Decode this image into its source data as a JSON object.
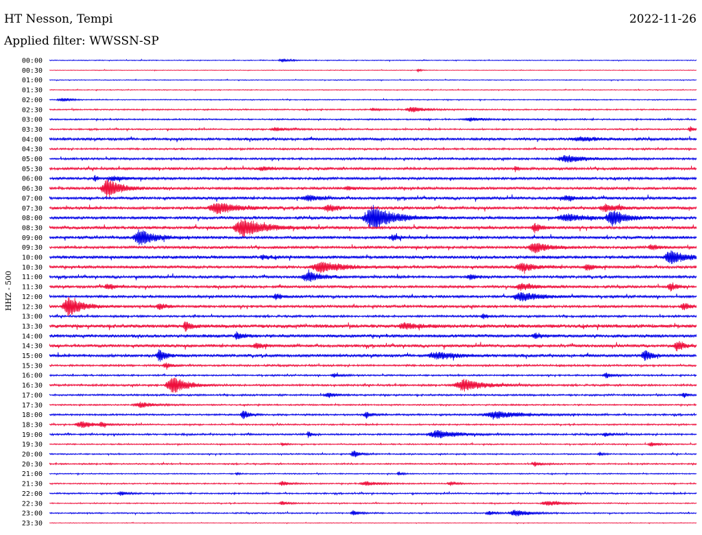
{
  "header": {
    "station": "HT Nesson, Tempi",
    "date": "2022-11-26",
    "filter": "Applied filter: WWSSN-SP"
  },
  "chart_data": {
    "type": "helicorder",
    "ylabel": "HHZ - 500",
    "colors": {
      "even": "#0000e6",
      "odd": "#ee0f3c"
    },
    "rows": [
      {
        "label": "00:00",
        "noise": 0.5,
        "events": [
          [
            0.36,
            2.5,
            0.012
          ]
        ]
      },
      {
        "label": "00:30",
        "noise": 0.4,
        "events": [
          [
            0.57,
            3,
            0.004
          ]
        ]
      },
      {
        "label": "01:00",
        "noise": 0.5,
        "events": []
      },
      {
        "label": "01:30",
        "noise": 0.5,
        "events": []
      },
      {
        "label": "02:00",
        "noise": 0.6,
        "events": [
          [
            0.02,
            2.5,
            0.015
          ]
        ]
      },
      {
        "label": "02:30",
        "noise": 0.8,
        "events": [
          [
            0.5,
            2,
            0.01
          ],
          [
            0.56,
            4,
            0.02
          ]
        ]
      },
      {
        "label": "03:00",
        "noise": 0.9,
        "events": [
          [
            0.65,
            2.5,
            0.02
          ]
        ]
      },
      {
        "label": "03:30",
        "noise": 0.9,
        "events": [
          [
            0.35,
            2.5,
            0.02
          ],
          [
            0.99,
            4,
            0.006
          ]
        ]
      },
      {
        "label": "04:00",
        "noise": 1.6,
        "events": [
          [
            0.82,
            3,
            0.03
          ]
        ]
      },
      {
        "label": "04:30",
        "noise": 1.1,
        "events": []
      },
      {
        "label": "05:00",
        "noise": 1.3,
        "events": [
          [
            0.8,
            5,
            0.03
          ]
        ]
      },
      {
        "label": "05:30",
        "noise": 1.6,
        "events": [
          [
            0.33,
            2.5,
            0.02
          ],
          [
            0.72,
            4,
            0.004
          ]
        ]
      },
      {
        "label": "06:00",
        "noise": 1.6,
        "events": [
          [
            0.07,
            5,
            0.004
          ],
          [
            0.1,
            3,
            0.02
          ]
        ]
      },
      {
        "label": "06:30",
        "noise": 1.7,
        "events": [
          [
            0.09,
            14,
            0.02
          ],
          [
            0.46,
            3,
            0.01
          ]
        ]
      },
      {
        "label": "07:00",
        "noise": 1.7,
        "events": [
          [
            0.4,
            4,
            0.02
          ],
          [
            0.8,
            3,
            0.02
          ]
        ]
      },
      {
        "label": "07:30",
        "noise": 1.8,
        "events": [
          [
            0.26,
            8,
            0.03
          ],
          [
            0.43,
            5,
            0.015
          ],
          [
            0.86,
            5,
            0.02
          ]
        ]
      },
      {
        "label": "08:00",
        "noise": 1.8,
        "events": [
          [
            0.5,
            18,
            0.03
          ],
          [
            0.87,
            11,
            0.02
          ],
          [
            0.8,
            5,
            0.03
          ]
        ]
      },
      {
        "label": "08:30",
        "noise": 1.9,
        "events": [
          [
            0.3,
            14,
            0.03
          ],
          [
            0.75,
            6,
            0.01
          ]
        ]
      },
      {
        "label": "09:00",
        "noise": 1.8,
        "events": [
          [
            0.14,
            12,
            0.02
          ],
          [
            0.53,
            4,
            0.01
          ]
        ]
      },
      {
        "label": "09:30",
        "noise": 1.7,
        "events": [
          [
            0.75,
            8,
            0.02
          ],
          [
            0.93,
            4,
            0.01
          ]
        ]
      },
      {
        "label": "10:00",
        "noise": 2.0,
        "events": [
          [
            0.96,
            10,
            0.02
          ],
          [
            0.33,
            3,
            0.01
          ]
        ]
      },
      {
        "label": "10:30",
        "noise": 1.8,
        "events": [
          [
            0.42,
            8,
            0.03
          ],
          [
            0.73,
            6,
            0.02
          ],
          [
            0.83,
            5,
            0.01
          ]
        ]
      },
      {
        "label": "11:00",
        "noise": 1.6,
        "events": [
          [
            0.4,
            7,
            0.02
          ],
          [
            0.65,
            4,
            0.01
          ]
        ]
      },
      {
        "label": "11:30",
        "noise": 1.6,
        "events": [
          [
            0.09,
            5,
            0.01
          ],
          [
            0.73,
            5,
            0.02
          ],
          [
            0.96,
            6,
            0.01
          ]
        ]
      },
      {
        "label": "12:00",
        "noise": 1.6,
        "events": [
          [
            0.73,
            6,
            0.03
          ],
          [
            0.35,
            4,
            0.01
          ]
        ]
      },
      {
        "label": "12:30",
        "noise": 1.6,
        "events": [
          [
            0.03,
            14,
            0.02
          ],
          [
            0.17,
            5,
            0.01
          ],
          [
            0.98,
            5,
            0.01
          ]
        ]
      },
      {
        "label": "13:00",
        "noise": 1.3,
        "events": [
          [
            0.67,
            4,
            0.006
          ]
        ]
      },
      {
        "label": "13:30",
        "noise": 2.3,
        "events": [
          [
            0.21,
            7,
            0.008
          ],
          [
            0.55,
            4,
            0.02
          ]
        ]
      },
      {
        "label": "14:00",
        "noise": 2.0,
        "events": [
          [
            0.29,
            5,
            0.01
          ],
          [
            0.75,
            4,
            0.01
          ]
        ]
      },
      {
        "label": "14:30",
        "noise": 1.8,
        "events": [
          [
            0.97,
            8,
            0.01
          ],
          [
            0.32,
            4,
            0.01
          ]
        ]
      },
      {
        "label": "15:00",
        "noise": 1.8,
        "events": [
          [
            0.17,
            9,
            0.01
          ],
          [
            0.92,
            8,
            0.01
          ],
          [
            0.6,
            5,
            0.03
          ]
        ]
      },
      {
        "label": "15:30",
        "noise": 1.2,
        "events": [
          [
            0.18,
            4,
            0.01
          ]
        ]
      },
      {
        "label": "16:00",
        "noise": 1.0,
        "events": [
          [
            0.44,
            3,
            0.01
          ],
          [
            0.86,
            4,
            0.01
          ]
        ]
      },
      {
        "label": "16:30",
        "noise": 1.2,
        "events": [
          [
            0.19,
            14,
            0.02
          ],
          [
            0.64,
            9,
            0.03
          ]
        ]
      },
      {
        "label": "17:00",
        "noise": 1.1,
        "events": [
          [
            0.43,
            4,
            0.01
          ],
          [
            0.98,
            5,
            0.005
          ]
        ]
      },
      {
        "label": "17:30",
        "noise": 0.9,
        "events": [
          [
            0.14,
            4,
            0.02
          ]
        ]
      },
      {
        "label": "18:00",
        "noise": 1.1,
        "events": [
          [
            0.3,
            6,
            0.01
          ],
          [
            0.49,
            4,
            0.01
          ],
          [
            0.69,
            5,
            0.04
          ]
        ]
      },
      {
        "label": "18:30",
        "noise": 0.9,
        "events": [
          [
            0.05,
            5,
            0.02
          ],
          [
            0.08,
            4,
            0.005
          ]
        ]
      },
      {
        "label": "19:00",
        "noise": 1.1,
        "events": [
          [
            0.6,
            6,
            0.03
          ],
          [
            0.4,
            5,
            0.004
          ],
          [
            0.86,
            3,
            0.01
          ]
        ]
      },
      {
        "label": "19:30",
        "noise": 0.8,
        "events": [
          [
            0.36,
            3,
            0.005
          ],
          [
            0.93,
            3,
            0.01
          ]
        ]
      },
      {
        "label": "20:00",
        "noise": 0.8,
        "events": [
          [
            0.47,
            5,
            0.01
          ],
          [
            0.85,
            3,
            0.005
          ]
        ]
      },
      {
        "label": "20:30",
        "noise": 0.9,
        "events": [
          [
            0.75,
            3,
            0.01
          ]
        ]
      },
      {
        "label": "21:00",
        "noise": 0.7,
        "events": [
          [
            0.29,
            2,
            0.005
          ],
          [
            0.54,
            3,
            0.005
          ]
        ]
      },
      {
        "label": "21:30",
        "noise": 0.8,
        "events": [
          [
            0.36,
            4,
            0.01
          ],
          [
            0.49,
            3,
            0.02
          ],
          [
            0.62,
            3,
            0.01
          ]
        ]
      },
      {
        "label": "22:00",
        "noise": 0.9,
        "events": [
          [
            0.11,
            3,
            0.01
          ]
        ]
      },
      {
        "label": "22:30",
        "noise": 0.7,
        "events": [
          [
            0.36,
            3,
            0.01
          ],
          [
            0.77,
            4,
            0.02
          ]
        ]
      },
      {
        "label": "23:00",
        "noise": 0.8,
        "events": [
          [
            0.47,
            4,
            0.01
          ],
          [
            0.72,
            5,
            0.02
          ],
          [
            0.68,
            3,
            0.01
          ]
        ]
      },
      {
        "label": "23:30",
        "noise": 0.4,
        "events": []
      }
    ]
  }
}
